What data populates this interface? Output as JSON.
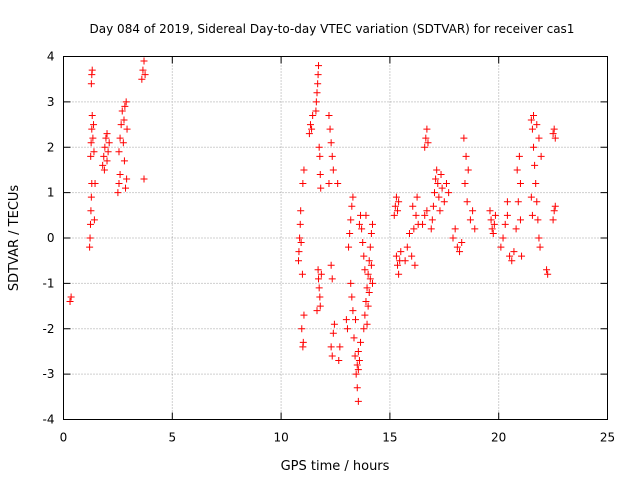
{
  "chart_data": {
    "type": "scatter",
    "title": "Day 084 of 2019, Sidereal Day-to-day VTEC variation (SDTVAR) for receiver cas1",
    "xlabel": "GPS time / hours",
    "ylabel": "SDTVAR / TECUs",
    "xlim": [
      0,
      25
    ],
    "ylim": [
      -4,
      4
    ],
    "xticks": [
      0,
      5,
      10,
      15,
      20,
      25
    ],
    "yticks": [
      -4,
      -3,
      -2,
      -1,
      0,
      1,
      2,
      3,
      4
    ],
    "grid": true,
    "marker": "+",
    "color": "#ff0000",
    "series": [
      {
        "name": "SDTVAR",
        "points": [
          [
            0.3,
            -1.4
          ],
          [
            0.35,
            -1.3
          ],
          [
            1.2,
            -0.2
          ],
          [
            1.22,
            0.0
          ],
          [
            1.24,
            0.3
          ],
          [
            1.26,
            0.6
          ],
          [
            1.28,
            0.9
          ],
          [
            1.3,
            1.2
          ],
          [
            1.25,
            1.8
          ],
          [
            1.27,
            2.1
          ],
          [
            1.3,
            2.4
          ],
          [
            1.32,
            2.7
          ],
          [
            1.28,
            3.4
          ],
          [
            1.3,
            3.6
          ],
          [
            1.32,
            3.7
          ],
          [
            1.35,
            2.2
          ],
          [
            1.38,
            2.5
          ],
          [
            1.4,
            1.9
          ],
          [
            1.42,
            0.4
          ],
          [
            1.45,
            1.2
          ],
          [
            1.8,
            1.6
          ],
          [
            1.85,
            1.8
          ],
          [
            1.9,
            2.0
          ],
          [
            1.95,
            2.2
          ],
          [
            2.0,
            1.7
          ],
          [
            2.05,
            1.9
          ],
          [
            2.1,
            2.1
          ],
          [
            2.0,
            2.3
          ],
          [
            1.88,
            1.5
          ],
          [
            2.5,
            1.0
          ],
          [
            2.55,
            1.2
          ],
          [
            2.6,
            1.4
          ],
          [
            2.55,
            1.9
          ],
          [
            2.6,
            2.2
          ],
          [
            2.65,
            2.5
          ],
          [
            2.7,
            2.8
          ],
          [
            2.75,
            2.1
          ],
          [
            2.8,
            1.7
          ],
          [
            2.85,
            1.1
          ],
          [
            2.9,
            1.3
          ],
          [
            2.78,
            2.6
          ],
          [
            2.82,
            2.9
          ],
          [
            2.88,
            3.0
          ],
          [
            2.92,
            2.4
          ],
          [
            3.6,
            3.5
          ],
          [
            3.65,
            3.7
          ],
          [
            3.7,
            3.9
          ],
          [
            3.75,
            3.6
          ],
          [
            3.7,
            1.3
          ],
          [
            10.8,
            -0.5
          ],
          [
            10.82,
            -0.3
          ],
          [
            10.85,
            0.0
          ],
          [
            10.88,
            0.3
          ],
          [
            10.9,
            0.6
          ],
          [
            10.92,
            -0.1
          ],
          [
            10.95,
            -2.0
          ],
          [
            11.0,
            -2.4
          ],
          [
            11.02,
            -2.3
          ],
          [
            11.05,
            -1.7
          ],
          [
            11.0,
            1.2
          ],
          [
            11.05,
            1.5
          ],
          [
            10.98,
            -0.8
          ],
          [
            11.3,
            2.3
          ],
          [
            11.35,
            2.5
          ],
          [
            11.4,
            2.4
          ],
          [
            11.45,
            2.7
          ],
          [
            11.6,
            2.8
          ],
          [
            11.62,
            3.0
          ],
          [
            11.65,
            3.2
          ],
          [
            11.68,
            3.4
          ],
          [
            11.7,
            3.6
          ],
          [
            11.72,
            3.8
          ],
          [
            11.75,
            2.0
          ],
          [
            11.78,
            1.8
          ],
          [
            11.8,
            1.4
          ],
          [
            11.82,
            1.1
          ],
          [
            11.7,
            -0.7
          ],
          [
            11.72,
            -0.9
          ],
          [
            11.75,
            -1.1
          ],
          [
            11.78,
            -1.3
          ],
          [
            11.8,
            -1.5
          ],
          [
            11.85,
            -0.8
          ],
          [
            11.65,
            -1.6
          ],
          [
            12.2,
            2.7
          ],
          [
            12.25,
            2.4
          ],
          [
            12.3,
            2.1
          ],
          [
            12.35,
            1.8
          ],
          [
            12.4,
            1.5
          ],
          [
            12.2,
            1.2
          ],
          [
            12.3,
            -0.6
          ],
          [
            12.35,
            -0.9
          ],
          [
            12.3,
            -2.4
          ],
          [
            12.35,
            -2.6
          ],
          [
            12.4,
            -2.1
          ],
          [
            12.45,
            -1.9
          ],
          [
            12.6,
            1.2
          ],
          [
            12.65,
            -2.7
          ],
          [
            12.7,
            -2.4
          ],
          [
            13.0,
            -1.8
          ],
          [
            13.05,
            -2.0
          ],
          [
            13.1,
            -0.2
          ],
          [
            13.15,
            0.1
          ],
          [
            13.2,
            0.4
          ],
          [
            13.25,
            0.7
          ],
          [
            13.3,
            0.9
          ],
          [
            13.2,
            -1.0
          ],
          [
            13.25,
            -1.3
          ],
          [
            13.3,
            -1.6
          ],
          [
            13.35,
            -2.2
          ],
          [
            13.4,
            -2.6
          ],
          [
            13.45,
            -3.0
          ],
          [
            13.5,
            -3.3
          ],
          [
            13.55,
            -3.6
          ],
          [
            13.5,
            -2.8
          ],
          [
            13.55,
            -2.5
          ],
          [
            13.6,
            -2.7
          ],
          [
            13.65,
            -2.3
          ],
          [
            13.6,
            0.3
          ],
          [
            13.65,
            0.5
          ],
          [
            13.7,
            0.2
          ],
          [
            13.75,
            -0.1
          ],
          [
            13.8,
            -0.4
          ],
          [
            13.85,
            -0.7
          ],
          [
            13.8,
            -2.0
          ],
          [
            13.85,
            -1.7
          ],
          [
            13.9,
            -1.4
          ],
          [
            13.95,
            -1.1
          ],
          [
            14.0,
            -0.8
          ],
          [
            14.05,
            -0.5
          ],
          [
            14.1,
            -0.2
          ],
          [
            14.15,
            0.1
          ],
          [
            14.2,
            0.3
          ],
          [
            13.95,
            -1.9
          ],
          [
            14.0,
            -1.5
          ],
          [
            14.05,
            -1.2
          ],
          [
            14.1,
            -0.9
          ],
          [
            14.15,
            -0.6
          ],
          [
            14.2,
            -1.0
          ],
          [
            13.9,
            0.5
          ],
          [
            13.55,
            -2.9
          ],
          [
            13.42,
            -1.8
          ],
          [
            15.2,
            0.5
          ],
          [
            15.25,
            0.7
          ],
          [
            15.3,
            0.9
          ],
          [
            15.35,
            0.6
          ],
          [
            15.3,
            -0.4
          ],
          [
            15.35,
            -0.6
          ],
          [
            15.4,
            -0.8
          ],
          [
            15.45,
            -0.5
          ],
          [
            15.5,
            -0.3
          ],
          [
            15.4,
            0.8
          ],
          [
            15.7,
            -0.5
          ],
          [
            15.8,
            -0.2
          ],
          [
            15.9,
            0.1
          ],
          [
            16.0,
            -0.4
          ],
          [
            16.1,
            0.2
          ],
          [
            16.2,
            0.5
          ],
          [
            16.3,
            0.3
          ],
          [
            16.05,
            0.7
          ],
          [
            16.25,
            0.9
          ],
          [
            16.15,
            -0.6
          ],
          [
            16.5,
            0.3
          ],
          [
            16.6,
            0.5
          ],
          [
            16.7,
            0.6
          ],
          [
            16.6,
            2.0
          ],
          [
            16.65,
            2.2
          ],
          [
            16.7,
            2.4
          ],
          [
            16.75,
            2.1
          ],
          [
            16.9,
            0.2
          ],
          [
            16.95,
            0.4
          ],
          [
            17.0,
            0.7
          ],
          [
            17.05,
            1.0
          ],
          [
            17.1,
            1.3
          ],
          [
            17.15,
            1.5
          ],
          [
            17.2,
            1.2
          ],
          [
            17.25,
            0.9
          ],
          [
            17.3,
            0.6
          ],
          [
            17.35,
            1.4
          ],
          [
            17.4,
            1.1
          ],
          [
            17.5,
            0.8
          ],
          [
            17.6,
            1.2
          ],
          [
            17.7,
            1.0
          ],
          [
            17.9,
            0.0
          ],
          [
            18.0,
            0.2
          ],
          [
            18.1,
            -0.2
          ],
          [
            18.2,
            -0.3
          ],
          [
            18.3,
            -0.1
          ],
          [
            18.4,
            2.2
          ],
          [
            18.5,
            1.8
          ],
          [
            18.6,
            1.5
          ],
          [
            18.7,
            0.4
          ],
          [
            18.8,
            0.6
          ],
          [
            18.9,
            0.2
          ],
          [
            18.45,
            1.2
          ],
          [
            18.55,
            0.8
          ],
          [
            19.6,
            0.6
          ],
          [
            19.65,
            0.4
          ],
          [
            19.7,
            0.2
          ],
          [
            19.75,
            0.1
          ],
          [
            19.8,
            0.3
          ],
          [
            19.85,
            0.5
          ],
          [
            20.1,
            -0.2
          ],
          [
            20.2,
            0.0
          ],
          [
            20.3,
            0.3
          ],
          [
            20.4,
            0.5
          ],
          [
            20.5,
            -0.4
          ],
          [
            20.6,
            -0.5
          ],
          [
            20.7,
            -0.3
          ],
          [
            20.8,
            0.2
          ],
          [
            20.9,
            0.8
          ],
          [
            21.0,
            1.2
          ],
          [
            20.95,
            1.8
          ],
          [
            21.0,
            0.4
          ],
          [
            21.05,
            -0.4
          ],
          [
            20.4,
            0.8
          ],
          [
            20.85,
            1.5
          ],
          [
            21.5,
            2.6
          ],
          [
            21.55,
            2.4
          ],
          [
            21.6,
            2.0
          ],
          [
            21.65,
            1.6
          ],
          [
            21.7,
            1.2
          ],
          [
            21.75,
            0.8
          ],
          [
            21.8,
            0.4
          ],
          [
            21.85,
            0.0
          ],
          [
            21.9,
            -0.2
          ],
          [
            21.6,
            2.7
          ],
          [
            21.75,
            2.5
          ],
          [
            21.85,
            2.2
          ],
          [
            21.95,
            1.8
          ],
          [
            21.5,
            0.9
          ],
          [
            21.55,
            0.5
          ],
          [
            22.2,
            -0.7
          ],
          [
            22.25,
            -0.8
          ],
          [
            22.5,
            2.3
          ],
          [
            22.55,
            2.4
          ],
          [
            22.6,
            2.2
          ],
          [
            22.5,
            0.4
          ],
          [
            22.55,
            0.6
          ],
          [
            22.6,
            0.7
          ]
        ]
      }
    ]
  }
}
